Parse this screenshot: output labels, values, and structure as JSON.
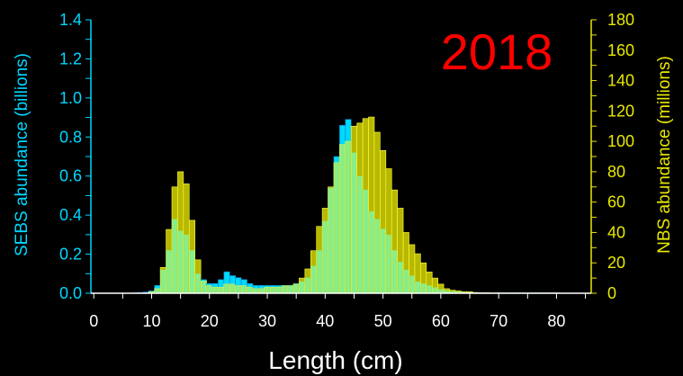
{
  "chart_data": {
    "type": "bar",
    "title": "2018",
    "xlabel": "Length (cm)",
    "ylabel_left": "SEBS abundance  (billions)",
    "ylabel_right": "NBS abundance  (millions)",
    "x_ticks": [
      "0",
      "10",
      "20",
      "30",
      "40",
      "50",
      "60",
      "70",
      "80"
    ],
    "y_left_ticks": [
      "0.0",
      "0.2",
      "0.4",
      "0.6",
      "0.8",
      "1.0",
      "1.2",
      "1.4"
    ],
    "y_right_ticks": [
      "0",
      "20",
      "40",
      "60",
      "80",
      "100",
      "120",
      "140",
      "160",
      "180"
    ],
    "xlim": [
      -0.5,
      86
    ],
    "ylim_left": [
      0,
      1.4
    ],
    "ylim_right": [
      0,
      180
    ],
    "grid": false,
    "x": [
      7,
      8,
      9,
      10,
      11,
      12,
      13,
      14,
      15,
      16,
      17,
      18,
      19,
      20,
      21,
      22,
      23,
      24,
      25,
      26,
      27,
      28,
      29,
      30,
      31,
      32,
      33,
      34,
      35,
      36,
      37,
      38,
      39,
      40,
      41,
      42,
      43,
      44,
      45,
      46,
      47,
      48,
      49,
      50,
      51,
      52,
      53,
      54,
      55,
      56,
      57,
      58,
      59,
      60,
      61,
      62,
      63,
      64,
      65,
      66,
      67,
      68,
      69,
      70,
      71,
      72,
      73,
      74,
      75,
      76,
      77,
      78,
      79,
      80
    ],
    "series": [
      {
        "name": "SEBS",
        "axis": "left",
        "values": [
          0.002,
          0.004,
          0.006,
          0.012,
          0.04,
          0.12,
          0.22,
          0.38,
          0.32,
          0.3,
          0.22,
          0.1,
          0.07,
          0.05,
          0.05,
          0.07,
          0.11,
          0.09,
          0.08,
          0.07,
          0.05,
          0.04,
          0.04,
          0.04,
          0.04,
          0.04,
          0.04,
          0.04,
          0.05,
          0.06,
          0.08,
          0.14,
          0.22,
          0.37,
          0.54,
          0.7,
          0.86,
          0.89,
          0.72,
          0.6,
          0.53,
          0.42,
          0.38,
          0.33,
          0.3,
          0.22,
          0.16,
          0.12,
          0.09,
          0.06,
          0.05,
          0.04,
          0.03,
          0.02,
          0.015,
          0.01,
          0.008,
          0.006,
          0.005,
          0.004,
          0.003,
          0.003,
          0.002,
          0.002,
          0.002,
          0.002,
          0.002,
          0.002,
          0.002,
          0.002,
          0.002,
          0.002,
          0.002,
          0.002
        ],
        "color": "#00d8ff"
      },
      {
        "name": "NBS",
        "axis": "right",
        "values": [
          0,
          0,
          0,
          1,
          3,
          17,
          42,
          70,
          80,
          72,
          48,
          22,
          8,
          5,
          4,
          4,
          6,
          6,
          5,
          5,
          4,
          3,
          3,
          4,
          4,
          4,
          5,
          5,
          6,
          10,
          16,
          28,
          44,
          56,
          70,
          86,
          98,
          100,
          110,
          112,
          115,
          116,
          106,
          94,
          82,
          68,
          56,
          40,
          32,
          26,
          20,
          14,
          10,
          6,
          3,
          2,
          1.5,
          1,
          1,
          0.5,
          0.3,
          0.3,
          0.2,
          0.2,
          0.2,
          0.2,
          0.2,
          0.2,
          0.2,
          0.2,
          0.2,
          0.2,
          0.2,
          0.2
        ],
        "color": "#b8b800"
      }
    ],
    "overlap_color": "#88ee88",
    "colors": {
      "background": "#000000",
      "left_axis": "#00d8ff",
      "right_axis": "#e8e800",
      "x_axis": "#ffffff",
      "title": "#ff0000"
    }
  }
}
